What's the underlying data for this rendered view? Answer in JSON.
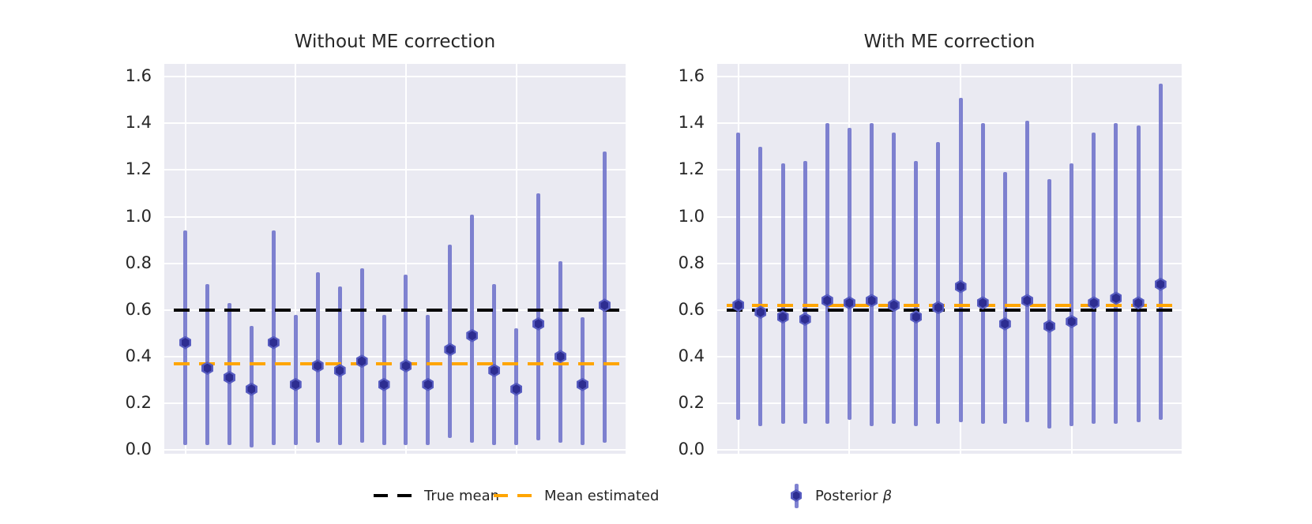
{
  "style": {
    "figure_bg": "#ffffff",
    "plot_bg": "#eaeaf2",
    "grid_color": "#ffffff",
    "bar_color": "#6a6dc9",
    "marker_fill": "#2d2d91",
    "marker_edge": "#575cc0",
    "true_mean_color": "#000000",
    "mean_estimated_color": "#ffa500",
    "text_color": "#262626"
  },
  "axes": {
    "ytick_labels": [
      "0.0",
      "0.2",
      "0.4",
      "0.6",
      "0.8",
      "1.0",
      "1.2",
      "1.4",
      "1.6"
    ],
    "ytick_values": [
      0.0,
      0.2,
      0.4,
      0.6,
      0.8,
      1.0,
      1.2,
      1.4,
      1.6
    ],
    "ylim": [
      -0.017,
      1.655
    ],
    "xgrid_indices": [
      0,
      5,
      10,
      15
    ],
    "grid": "on"
  },
  "chart_data": [
    {
      "type": "scatter",
      "subtype": "errorbar",
      "title": "Without ME correction",
      "x": [
        1,
        2,
        3,
        4,
        5,
        6,
        7,
        8,
        9,
        10,
        11,
        12,
        13,
        14,
        15,
        16,
        17,
        18,
        19,
        20
      ],
      "means": [
        0.46,
        0.35,
        0.31,
        0.26,
        0.46,
        0.28,
        0.36,
        0.34,
        0.38,
        0.28,
        0.36,
        0.28,
        0.43,
        0.49,
        0.34,
        0.26,
        0.54,
        0.4,
        0.28,
        0.62
      ],
      "upper": [
        0.94,
        0.71,
        0.63,
        0.53,
        0.94,
        0.58,
        0.76,
        0.7,
        0.78,
        0.58,
        0.75,
        0.58,
        0.88,
        1.01,
        0.71,
        0.52,
        1.1,
        0.81,
        0.57,
        1.28
      ],
      "lower": [
        0.02,
        0.02,
        0.02,
        0.01,
        0.02,
        0.02,
        0.03,
        0.02,
        0.03,
        0.02,
        0.02,
        0.02,
        0.05,
        0.03,
        0.02,
        0.02,
        0.04,
        0.03,
        0.02,
        0.03
      ],
      "true_mean": 0.6,
      "mean_estimated": 0.37,
      "ylim": [
        -0.017,
        1.655
      ]
    },
    {
      "type": "scatter",
      "subtype": "errorbar",
      "title": "With ME correction",
      "x": [
        1,
        2,
        3,
        4,
        5,
        6,
        7,
        8,
        9,
        10,
        11,
        12,
        13,
        14,
        15,
        16,
        17,
        18,
        19,
        20
      ],
      "means": [
        0.62,
        0.59,
        0.57,
        0.56,
        0.64,
        0.63,
        0.64,
        0.62,
        0.57,
        0.61,
        0.7,
        0.63,
        0.54,
        0.64,
        0.53,
        0.55,
        0.63,
        0.65,
        0.63,
        0.71
      ],
      "upper": [
        1.36,
        1.3,
        1.23,
        1.24,
        1.4,
        1.38,
        1.4,
        1.36,
        1.24,
        1.32,
        1.51,
        1.4,
        1.19,
        1.41,
        1.16,
        1.23,
        1.36,
        1.4,
        1.39,
        1.57
      ],
      "lower": [
        0.13,
        0.1,
        0.11,
        0.11,
        0.11,
        0.13,
        0.1,
        0.11,
        0.1,
        0.11,
        0.12,
        0.11,
        0.11,
        0.12,
        0.09,
        0.1,
        0.11,
        0.11,
        0.12,
        0.13
      ],
      "true_mean": 0.6,
      "mean_estimated": 0.62,
      "ylim": [
        -0.017,
        1.655
      ]
    }
  ],
  "legend": {
    "position": "bottom-center",
    "items": [
      {
        "type": "dash",
        "color": "#000000",
        "label": "True mean"
      },
      {
        "type": "dash",
        "color": "#ffa500",
        "label": "Mean estimated"
      },
      {
        "type": "errorbar-marker",
        "color": "#6a6dc9",
        "label": "Posterior",
        "symbol": "β"
      }
    ]
  }
}
